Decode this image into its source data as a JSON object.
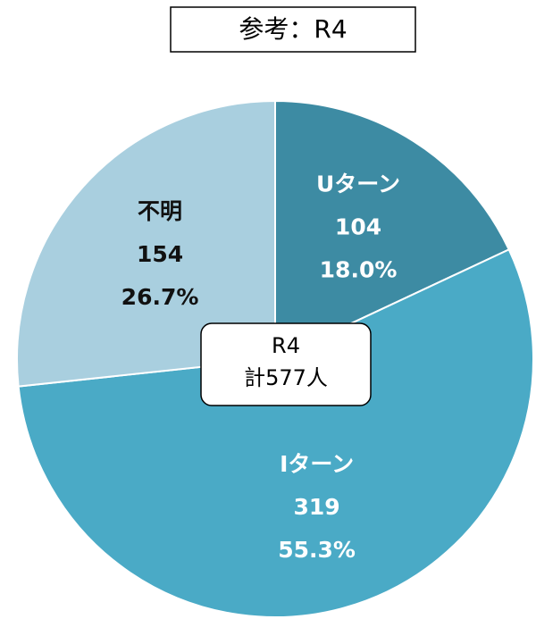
{
  "chart_data": {
    "type": "pie",
    "title": "参考：R4",
    "categories": [
      "Uターン",
      "Iターン",
      "不明"
    ],
    "values": [
      104,
      319,
      154
    ],
    "percent_labels": [
      "18.0%",
      "55.3%",
      "26.7%"
    ],
    "colors": [
      "#3d8ba3",
      "#4aaac6",
      "#a9cfdf"
    ],
    "label_colors": [
      "#ffffff",
      "#ffffff",
      "#111111"
    ],
    "center_label": [
      "R4",
      "計577人"
    ]
  }
}
